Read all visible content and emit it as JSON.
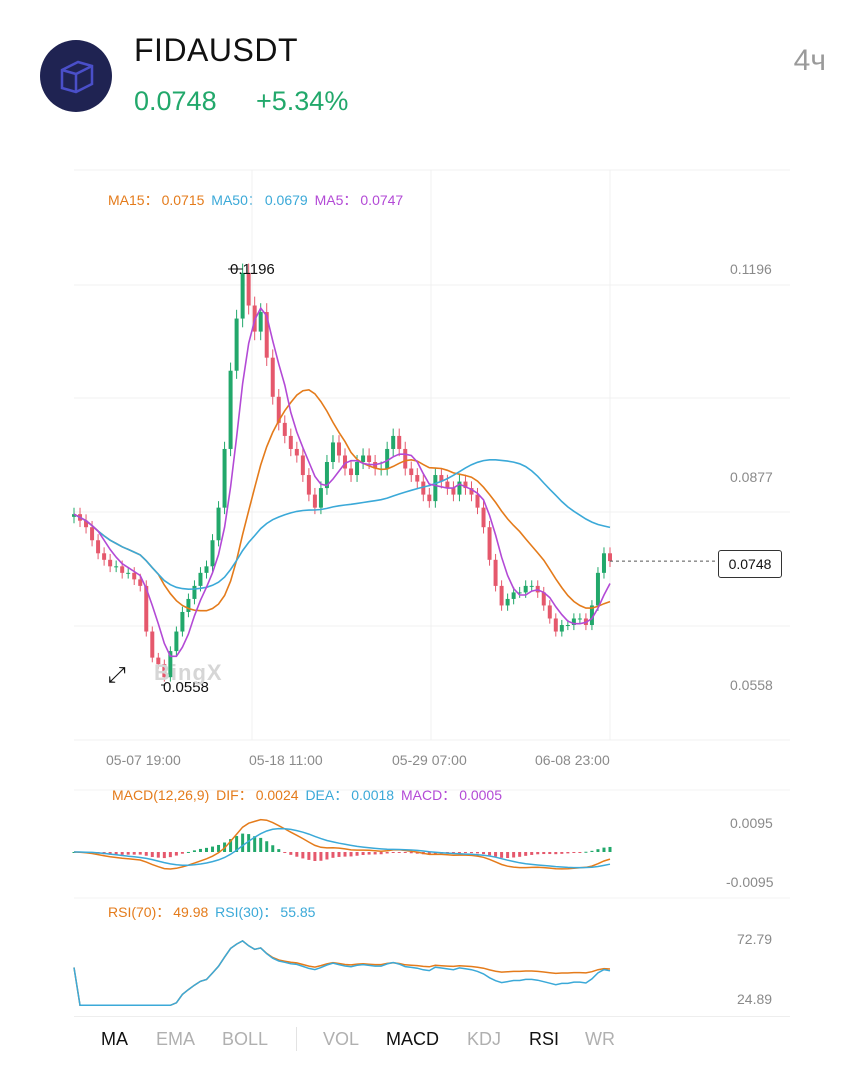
{
  "header": {
    "symbol": "FIDAUSDT",
    "price": "0.0748",
    "change": "+5.34%",
    "interval": "4ч",
    "logo_icon": "cube-icon",
    "accent_color": "#22a86b"
  },
  "main_legend": {
    "ma15_label": "MA15：",
    "ma15_value": "0.0715",
    "ma50_label": "MA50：",
    "ma50_value": "0.0679",
    "ma5_label": "MA5：",
    "ma5_value": "0.0747"
  },
  "price_axis": {
    "top": "0.1196",
    "mid": "0.0877",
    "bottom": "0.0558"
  },
  "markers": {
    "high": "0.1196",
    "low": "0.0558",
    "last": "0.0748"
  },
  "time_axis": [
    "05-07 19:00",
    "05-18 11:00",
    "05-29 07:00",
    "06-08 23:00"
  ],
  "watermark": "BingX",
  "macd_legend": {
    "name": "MACD(12,26,9)",
    "dif_label": "DIF：",
    "dif_value": "0.0024",
    "dea_label": "DEA：",
    "dea_value": "0.0018",
    "macd_label": "MACD：",
    "macd_value": "0.0005"
  },
  "macd_axis": {
    "top": "0.0095",
    "bottom": "-0.0095"
  },
  "rsi_legend": {
    "rsi70_label": "RSI(70)：",
    "rsi70_value": "49.98",
    "rsi30_label": "RSI(30)：",
    "rsi30_value": "55.85"
  },
  "rsi_axis": {
    "top": "72.79",
    "bottom": "24.89"
  },
  "tabs": [
    {
      "label": "MA",
      "active": true
    },
    {
      "label": "EMA",
      "active": false
    },
    {
      "label": "BOLL",
      "active": false
    },
    {
      "label": "VOL",
      "active": false
    },
    {
      "label": "MACD",
      "active": true
    },
    {
      "label": "KDJ",
      "active": false
    },
    {
      "label": "RSI",
      "active": true
    },
    {
      "label": "WR",
      "active": false
    }
  ],
  "colors": {
    "up": "#22a86b",
    "down": "#e5586c",
    "ma15": "#e47b1b",
    "ma50": "#3ba9d8",
    "ma5": "#b34ad6"
  },
  "chart_data": [
    {
      "type": "candlestick",
      "title": "",
      "x_ticks": [
        "05-07 19:00",
        "05-18 11:00",
        "05-29 07:00",
        "06-08 23:00"
      ],
      "ylim": [
        0.0558,
        0.1196
      ],
      "y_ticks": [
        0.0558,
        0.0877,
        0.1196
      ],
      "grid": true,
      "close": [
        0.082,
        0.081,
        0.08,
        0.078,
        0.076,
        0.075,
        0.074,
        0.074,
        0.073,
        0.073,
        0.072,
        0.071,
        0.064,
        0.06,
        0.059,
        0.057,
        0.061,
        0.064,
        0.067,
        0.069,
        0.071,
        0.073,
        0.074,
        0.078,
        0.083,
        0.092,
        0.104,
        0.112,
        0.119,
        0.114,
        0.11,
        0.113,
        0.106,
        0.1,
        0.096,
        0.094,
        0.092,
        0.091,
        0.088,
        0.085,
        0.083,
        0.086,
        0.09,
        0.093,
        0.091,
        0.089,
        0.088,
        0.09,
        0.091,
        0.09,
        0.089,
        0.089,
        0.092,
        0.094,
        0.092,
        0.089,
        0.088,
        0.087,
        0.085,
        0.084,
        0.088,
        0.087,
        0.086,
        0.085,
        0.087,
        0.086,
        0.085,
        0.083,
        0.08,
        0.075,
        0.071,
        0.068,
        0.069,
        0.07,
        0.07,
        0.071,
        0.071,
        0.07,
        0.068,
        0.066,
        0.064,
        0.065,
        0.065,
        0.066,
        0.066,
        0.065,
        0.068,
        0.073,
        0.076,
        0.0748
      ],
      "series": [
        {
          "name": "MA15",
          "value_last": 0.0715
        },
        {
          "name": "MA50",
          "value_last": 0.0679
        },
        {
          "name": "MA5",
          "value_last": 0.0747
        }
      ],
      "high_marker": 0.1196,
      "low_marker": 0.0558,
      "last_price": 0.0748
    },
    {
      "type": "line",
      "title": "MACD(12,26,9)",
      "ylim": [
        -0.0095,
        0.0095
      ],
      "series": [
        {
          "name": "DIF",
          "value_last": 0.0024
        },
        {
          "name": "DEA",
          "value_last": 0.0018
        },
        {
          "name": "MACD",
          "value_last": 0.0005
        }
      ]
    },
    {
      "type": "line",
      "title": "RSI",
      "ylim": [
        24.89,
        72.79
      ],
      "series": [
        {
          "name": "RSI(70)",
          "value_last": 49.98
        },
        {
          "name": "RSI(30)",
          "value_last": 55.85
        }
      ]
    }
  ]
}
